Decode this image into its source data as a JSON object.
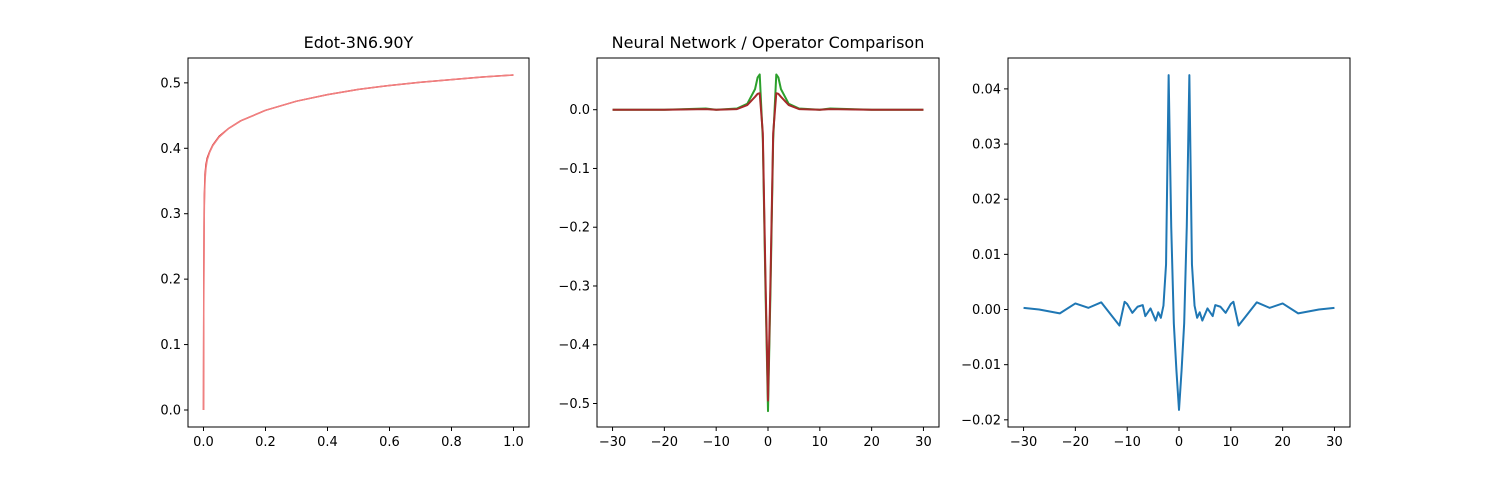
{
  "chart_data": [
    {
      "type": "line",
      "title": "Edot-3N6.90Y",
      "xlabel": "",
      "ylabel": "",
      "xlim": [
        -0.05,
        1.05
      ],
      "ylim": [
        -0.026,
        0.538
      ],
      "xticks": [
        "0.0",
        "0.2",
        "0.4",
        "0.6",
        "0.8",
        "1.0"
      ],
      "yticks": [
        "0.0",
        "0.1",
        "0.2",
        "0.3",
        "0.4",
        "0.5"
      ],
      "grid": false,
      "series": [
        {
          "color": "#d62728",
          "x": [
            0,
            0.001,
            0.002,
            0.003,
            0.005,
            0.008,
            0.012,
            0.02,
            0.03,
            0.05,
            0.08,
            0.12,
            0.2,
            0.3,
            0.4,
            0.5,
            0.6,
            0.7,
            0.8,
            0.9,
            1.0
          ],
          "y": [
            0.0,
            0.2,
            0.3,
            0.33,
            0.36,
            0.375,
            0.385,
            0.395,
            0.405,
            0.418,
            0.43,
            0.442,
            0.458,
            0.472,
            0.482,
            0.49,
            0.496,
            0.501,
            0.505,
            0.509,
            0.512
          ]
        },
        {
          "color": "#f08080",
          "x": [
            0,
            0.001,
            0.002,
            0.003,
            0.005,
            0.008,
            0.012,
            0.02,
            0.03,
            0.05,
            0.08,
            0.12,
            0.2,
            0.3,
            0.4,
            0.5,
            0.6,
            0.7,
            0.8,
            0.9,
            1.0
          ],
          "y": [
            0.0,
            0.18,
            0.28,
            0.32,
            0.352,
            0.37,
            0.382,
            0.394,
            0.404,
            0.417,
            0.43,
            0.442,
            0.458,
            0.472,
            0.482,
            0.49,
            0.496,
            0.501,
            0.505,
            0.509,
            0.512
          ]
        }
      ]
    },
    {
      "type": "line",
      "title": "Neural Network / Operator Comparison",
      "xlabel": "",
      "ylabel": "",
      "xlim": [
        -33,
        33
      ],
      "ylim": [
        -0.54,
        0.088
      ],
      "xticks": [
        "−30",
        "−20",
        "−10",
        "0",
        "10",
        "20",
        "30"
      ],
      "yticks": [
        "0.0",
        "−0.1",
        "−0.2",
        "−0.3",
        "−0.4",
        "−0.5"
      ],
      "grid": false,
      "series": [
        {
          "color": "#2ca02c",
          "x": [
            -30,
            -20,
            -12,
            -10,
            -6,
            -4,
            -2.5,
            -2,
            -1.6,
            -1,
            -0.5,
            0,
            0.5,
            1,
            1.6,
            2,
            2.5,
            4,
            6,
            10,
            12,
            20,
            30
          ],
          "y": [
            0.0,
            0.0,
            0.002,
            0.0,
            0.002,
            0.01,
            0.035,
            0.055,
            0.06,
            -0.05,
            -0.3,
            -0.513,
            -0.3,
            -0.05,
            0.06,
            0.055,
            0.035,
            0.01,
            0.002,
            0.0,
            0.002,
            0.0,
            0.0
          ]
        },
        {
          "color": "#a52a2a",
          "x": [
            -30,
            -20,
            -12,
            -10,
            -6,
            -4,
            -2.5,
            -2,
            -1.6,
            -1,
            -0.5,
            0,
            0.5,
            1,
            1.6,
            2,
            2.5,
            4,
            6,
            10,
            12,
            20,
            30
          ],
          "y": [
            0.0,
            0.0,
            0.001,
            0.0,
            0.001,
            0.008,
            0.022,
            0.027,
            0.028,
            -0.04,
            -0.28,
            -0.495,
            -0.28,
            -0.04,
            0.028,
            0.027,
            0.022,
            0.008,
            0.001,
            0.0,
            0.001,
            0.0,
            0.0
          ]
        }
      ]
    },
    {
      "type": "line",
      "title": "",
      "xlabel": "",
      "ylabel": "",
      "xlim": [
        -33,
        33
      ],
      "ylim": [
        -0.0213,
        0.0456
      ],
      "xticks": [
        "−30",
        "−20",
        "−10",
        "0",
        "10",
        "20",
        "30"
      ],
      "yticks": [
        "−0.02",
        "−0.01",
        "0.00",
        "0.01",
        "0.02",
        "0.03",
        "0.04"
      ],
      "grid": false,
      "series": [
        {
          "color": "#1f77b4",
          "x": [
            -30,
            -27,
            -23,
            -20,
            -17.5,
            -15,
            -13,
            -11.5,
            -10.5,
            -10,
            -9,
            -8,
            -7,
            -6.5,
            -5.5,
            -4.5,
            -4,
            -3.5,
            -3,
            -2.5,
            -2,
            -1.5,
            -1,
            -0.5,
            0,
            0.5,
            1,
            1.5,
            2,
            2.5,
            3,
            3.5,
            4,
            4.5,
            5.5,
            6.5,
            7,
            8,
            9,
            10,
            10.5,
            11.5,
            13,
            15,
            17.5,
            20,
            23,
            27,
            30
          ],
          "y": [
            0.0003,
            0.0,
            -0.0007,
            0.0011,
            0.0003,
            0.0013,
            -0.0011,
            -0.0029,
            0.0014,
            0.001,
            -0.0006,
            0.0005,
            0.0008,
            -0.0012,
            0.0002,
            -0.002,
            -0.0005,
            -0.0015,
            0.0007,
            0.0082,
            0.0425,
            0.015,
            -0.0025,
            -0.011,
            -0.0182,
            -0.011,
            -0.0025,
            0.015,
            0.0425,
            0.0082,
            0.0007,
            -0.0015,
            -0.0005,
            -0.002,
            0.0002,
            -0.0012,
            0.0008,
            0.0005,
            -0.0006,
            0.001,
            0.0014,
            -0.0029,
            -0.0011,
            0.0013,
            0.0003,
            0.0011,
            -0.0007,
            0.0,
            0.0003
          ]
        }
      ]
    }
  ]
}
